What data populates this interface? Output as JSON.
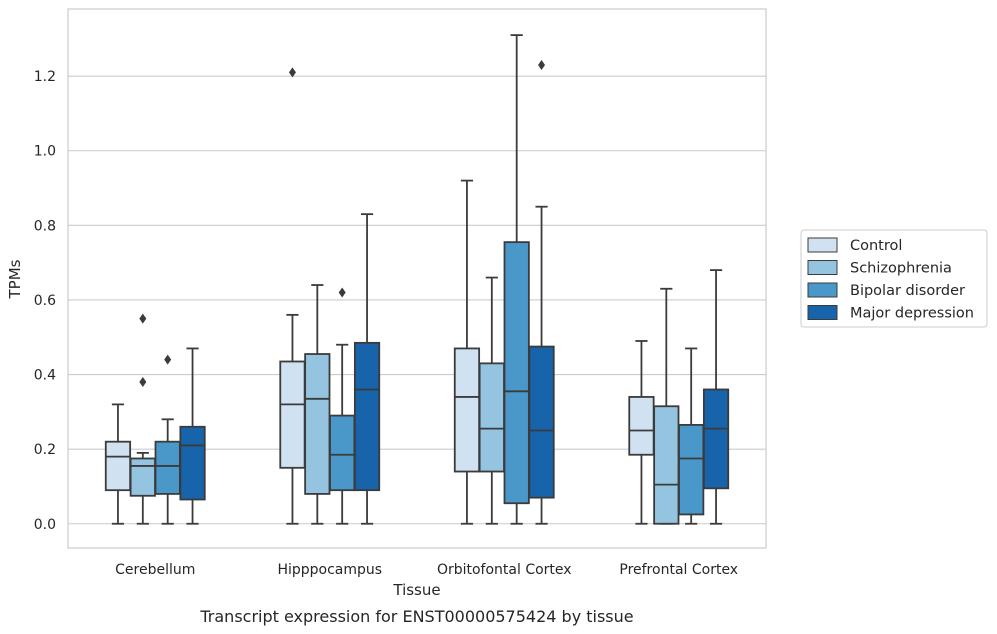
{
  "chart_data": {
    "type": "box",
    "caption": "Transcript expression for ENST00000575424 by tissue",
    "xlabel": "Tissue",
    "ylabel": "TPMs",
    "ylim": [
      -0.065,
      1.38
    ],
    "yticks": [
      "0.0",
      "0.2",
      "0.4",
      "0.6",
      "0.8",
      "1.0",
      "1.2"
    ],
    "grid": "horizontal",
    "legend_position": "right",
    "categories": [
      "Cerebellum",
      "Hipppocampus",
      "Orbitofontal Cortex",
      "Prefrontal Cortex"
    ],
    "series": [
      {
        "name": "Control",
        "color": "#d0e1f2",
        "boxes": [
          {
            "whislo": 0.0,
            "q1": 0.09,
            "med": 0.18,
            "q3": 0.22,
            "whishi": 0.32,
            "fliers": []
          },
          {
            "whislo": 0.0,
            "q1": 0.15,
            "med": 0.32,
            "q3": 0.435,
            "whishi": 0.56,
            "fliers": [
              1.21
            ]
          },
          {
            "whislo": 0.0,
            "q1": 0.14,
            "med": 0.34,
            "q3": 0.47,
            "whishi": 0.92,
            "fliers": []
          },
          {
            "whislo": 0.0,
            "q1": 0.185,
            "med": 0.25,
            "q3": 0.34,
            "whishi": 0.49,
            "fliers": []
          }
        ]
      },
      {
        "name": "Schizophrenia",
        "color": "#94c4df",
        "boxes": [
          {
            "whislo": 0.0,
            "q1": 0.075,
            "med": 0.155,
            "q3": 0.175,
            "whishi": 0.19,
            "fliers": [
              0.38,
              0.55
            ]
          },
          {
            "whislo": 0.0,
            "q1": 0.08,
            "med": 0.335,
            "q3": 0.455,
            "whishi": 0.64,
            "fliers": []
          },
          {
            "whislo": 0.0,
            "q1": 0.14,
            "med": 0.255,
            "q3": 0.43,
            "whishi": 0.66,
            "fliers": []
          },
          {
            "whislo": 0.0,
            "q1": 0.0,
            "med": 0.105,
            "q3": 0.315,
            "whishi": 0.63,
            "fliers": []
          }
        ]
      },
      {
        "name": "Bipolar disorder",
        "color": "#4a98c9",
        "boxes": [
          {
            "whislo": 0.0,
            "q1": 0.08,
            "med": 0.155,
            "q3": 0.22,
            "whishi": 0.28,
            "fliers": [
              0.44
            ]
          },
          {
            "whislo": 0.0,
            "q1": 0.09,
            "med": 0.185,
            "q3": 0.29,
            "whishi": 0.48,
            "fliers": [
              0.62
            ]
          },
          {
            "whislo": 0.0,
            "q1": 0.055,
            "med": 0.355,
            "q3": 0.755,
            "whishi": 1.31,
            "fliers": []
          },
          {
            "whislo": 0.0,
            "q1": 0.025,
            "med": 0.175,
            "q3": 0.265,
            "whishi": 0.47,
            "fliers": []
          }
        ]
      },
      {
        "name": "Major depression",
        "color": "#1764ab",
        "boxes": [
          {
            "whislo": 0.0,
            "q1": 0.065,
            "med": 0.21,
            "q3": 0.26,
            "whishi": 0.47,
            "fliers": []
          },
          {
            "whislo": 0.0,
            "q1": 0.09,
            "med": 0.36,
            "q3": 0.485,
            "whishi": 0.83,
            "fliers": []
          },
          {
            "whislo": 0.0,
            "q1": 0.07,
            "med": 0.25,
            "q3": 0.475,
            "whishi": 0.85,
            "fliers": [
              1.23
            ]
          },
          {
            "whislo": 0.0,
            "q1": 0.095,
            "med": 0.255,
            "q3": 0.36,
            "whishi": 0.68,
            "fliers": []
          }
        ]
      }
    ]
  }
}
